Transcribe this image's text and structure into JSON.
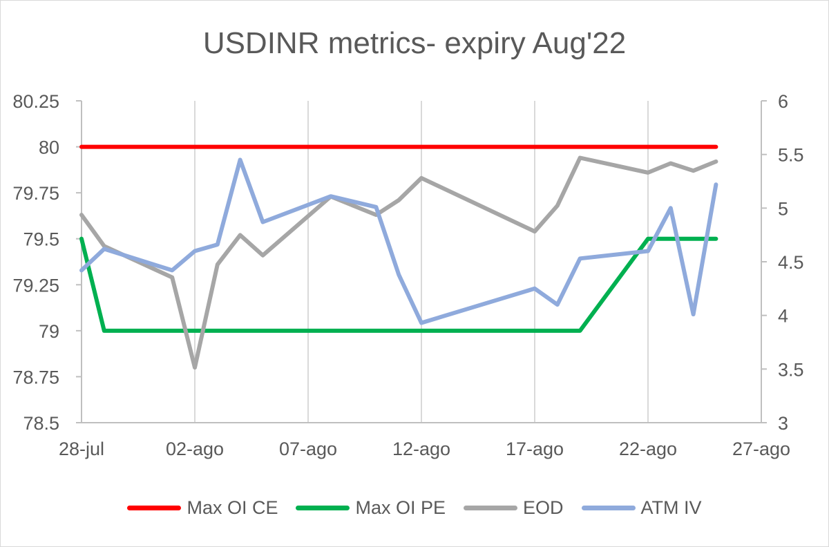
{
  "chart_data": {
    "type": "line",
    "title": "USDINR metrics- expiry Aug'22",
    "x_tick_labels": [
      "28-jul",
      "02-ago",
      "07-ago",
      "12-ago",
      "17-ago",
      "22-ago",
      "27-ago"
    ],
    "x_ticks": [
      "2022-07-28",
      "2022-08-02",
      "2022-08-07",
      "2022-08-12",
      "2022-08-17",
      "2022-08-22",
      "2022-08-27"
    ],
    "xlim": [
      "2022-07-28",
      "2022-08-27"
    ],
    "y_left": {
      "ylim": [
        78.5,
        80.25
      ],
      "ticks": [
        78.5,
        78.75,
        79,
        79.25,
        79.5,
        79.75,
        80,
        80.25
      ],
      "tick_labels": [
        "78.5",
        "78.75",
        "79",
        "79.25",
        "79.5",
        "79.75",
        "80",
        "80.25"
      ]
    },
    "y_right": {
      "ylim": [
        3,
        6
      ],
      "ticks": [
        3,
        3.5,
        4,
        4.5,
        5,
        5.5,
        6
      ],
      "tick_labels": [
        "3",
        "3.5",
        "4",
        "4.5",
        "5",
        "5.5",
        "6"
      ]
    },
    "grid": "vertical",
    "legend_position": "bottom",
    "series": [
      {
        "name": "Max OI CE",
        "axis": "left",
        "color": "#ff0000",
        "points": [
          [
            "2022-07-28",
            80
          ],
          [
            "2022-08-25",
            80
          ]
        ]
      },
      {
        "name": "Max OI PE",
        "axis": "left",
        "color": "#00b050",
        "points": [
          [
            "2022-07-28",
            79.5
          ],
          [
            "2022-07-29",
            79
          ],
          [
            "2022-08-19",
            79
          ],
          [
            "2022-08-22",
            79.5
          ],
          [
            "2022-08-25",
            79.5
          ]
        ]
      },
      {
        "name": "EOD",
        "axis": "left",
        "color": "#a6a6a6",
        "points": [
          [
            "2022-07-28",
            79.63
          ],
          [
            "2022-07-29",
            79.46
          ],
          [
            "2022-08-01",
            79.29
          ],
          [
            "2022-08-02",
            78.8
          ],
          [
            "2022-08-03",
            79.36
          ],
          [
            "2022-08-04",
            79.52
          ],
          [
            "2022-08-05",
            79.41
          ],
          [
            "2022-08-08",
            79.73
          ],
          [
            "2022-08-10",
            79.63
          ],
          [
            "2022-08-11",
            79.71
          ],
          [
            "2022-08-12",
            79.83
          ],
          [
            "2022-08-17",
            79.54
          ],
          [
            "2022-08-18",
            79.68
          ],
          [
            "2022-08-19",
            79.94
          ],
          [
            "2022-08-22",
            79.86
          ],
          [
            "2022-08-23",
            79.91
          ],
          [
            "2022-08-24",
            79.87
          ],
          [
            "2022-08-25",
            79.92
          ]
        ]
      },
      {
        "name": "ATM IV",
        "axis": "right",
        "color": "#8faadc",
        "points": [
          [
            "2022-07-28",
            4.42
          ],
          [
            "2022-07-29",
            4.62
          ],
          [
            "2022-08-01",
            4.42
          ],
          [
            "2022-08-02",
            4.6
          ],
          [
            "2022-08-03",
            4.66
          ],
          [
            "2022-08-04",
            5.45
          ],
          [
            "2022-08-05",
            4.87
          ],
          [
            "2022-08-08",
            5.11
          ],
          [
            "2022-08-10",
            5.01
          ],
          [
            "2022-08-11",
            4.38
          ],
          [
            "2022-08-12",
            3.93
          ],
          [
            "2022-08-17",
            4.25
          ],
          [
            "2022-08-18",
            4.1
          ],
          [
            "2022-08-19",
            4.53
          ],
          [
            "2022-08-22",
            4.6
          ],
          [
            "2022-08-23",
            5.0
          ],
          [
            "2022-08-24",
            4.01
          ],
          [
            "2022-08-25",
            5.22
          ]
        ]
      }
    ]
  }
}
